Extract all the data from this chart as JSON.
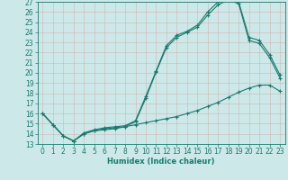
{
  "xlabel": "Humidex (Indice chaleur)",
  "xlim": [
    -0.5,
    23.5
  ],
  "ylim": [
    13,
    27
  ],
  "yticks": [
    13,
    14,
    15,
    16,
    17,
    18,
    19,
    20,
    21,
    22,
    23,
    24,
    25,
    26,
    27
  ],
  "xticks": [
    0,
    1,
    2,
    3,
    4,
    5,
    6,
    7,
    8,
    9,
    10,
    11,
    12,
    13,
    14,
    15,
    16,
    17,
    18,
    19,
    20,
    21,
    22,
    23
  ],
  "bg_color": "#cce8e8",
  "line_color": "#1a7a6e",
  "grid_color": "#b8d8d8",
  "line1_x": [
    0,
    1,
    2,
    3,
    4,
    5,
    6,
    7,
    8,
    9,
    10,
    11,
    12,
    13,
    14,
    15,
    16,
    17,
    18,
    19,
    20,
    21,
    22,
    23
  ],
  "line1_y": [
    16.0,
    14.9,
    13.8,
    13.3,
    14.0,
    14.3,
    14.4,
    14.5,
    14.7,
    14.9,
    15.1,
    15.3,
    15.5,
    15.7,
    16.0,
    16.3,
    16.7,
    17.1,
    17.6,
    18.1,
    18.5,
    18.8,
    18.8,
    18.2
  ],
  "line2_x": [
    0,
    1,
    2,
    3,
    4,
    5,
    6,
    7,
    8,
    9,
    10,
    11,
    12,
    13,
    14,
    15,
    16,
    17,
    18,
    19,
    20,
    21,
    22,
    23
  ],
  "line2_y": [
    16.0,
    14.9,
    13.8,
    13.3,
    14.0,
    14.3,
    14.5,
    14.6,
    14.7,
    15.2,
    17.5,
    20.1,
    22.5,
    23.5,
    24.0,
    24.5,
    25.7,
    26.7,
    27.2,
    26.8,
    23.2,
    22.9,
    21.5,
    19.5
  ],
  "line3_x": [
    0,
    1,
    2,
    3,
    4,
    5,
    6,
    7,
    8,
    9,
    10,
    11,
    12,
    13,
    14,
    15,
    16,
    17,
    18,
    19,
    20,
    21,
    22,
    23
  ],
  "line3_y": [
    16.0,
    14.9,
    13.8,
    13.3,
    14.1,
    14.4,
    14.6,
    14.7,
    14.8,
    15.3,
    17.7,
    20.2,
    22.7,
    23.7,
    24.1,
    24.7,
    26.0,
    27.0,
    27.3,
    27.0,
    23.5,
    23.2,
    21.8,
    19.8
  ],
  "tick_fontsize": 5.5,
  "xlabel_fontsize": 6.0
}
